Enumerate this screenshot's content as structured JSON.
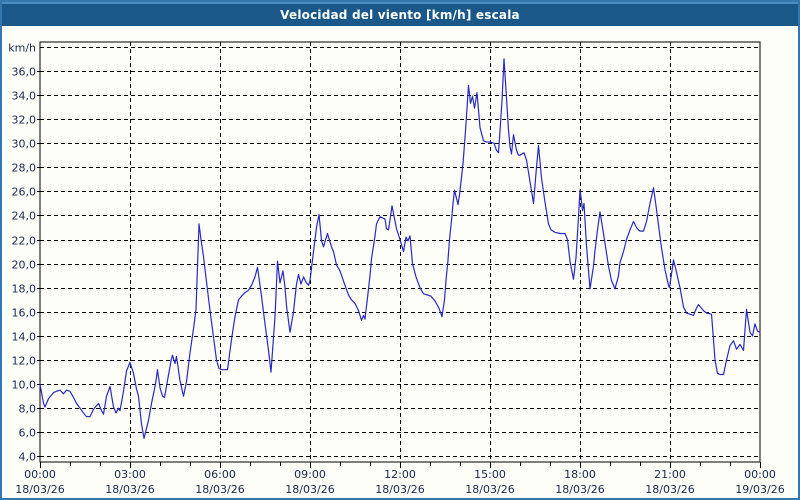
{
  "window": {
    "title": "Velocidad del viento [km/h] escala"
  },
  "colors": {
    "titlebar_bg": "#1a5889",
    "titlebar_highlight": "#4d8fc0",
    "window_border": "#3576ac",
    "content_bg": "#fcfef7",
    "plot_border": "#000000",
    "grid": "#000000",
    "line": "#2a2ac0",
    "label_text": "#1c2a50",
    "title_text": "#ffffff"
  },
  "chart_data": {
    "type": "line",
    "title": "Velocidad del viento [km/h] escala",
    "ylabel": "km/h",
    "xlabel": "",
    "grid": true,
    "legend": "none",
    "y_axis": {
      "min": 4,
      "max": 38,
      "grid_step": 2,
      "tick_labels": [
        "4,0",
        "6,0",
        "8,0",
        "10,0",
        "12,0",
        "14,0",
        "16,0",
        "18,0",
        "20,0",
        "22,0",
        "24,0",
        "26,0",
        "28,0",
        "30,0",
        "32,0",
        "34,0",
        "36,0"
      ],
      "unit_label": "km/h"
    },
    "x_axis": {
      "start_minutes": 0,
      "end_minutes": 1440,
      "major_tick_minutes": 180,
      "minor_tick_minutes": 60,
      "ticks": [
        {
          "time": "00:00",
          "date": "18/03/26"
        },
        {
          "time": "03:00",
          "date": "18/03/26"
        },
        {
          "time": "06:00",
          "date": "18/03/26"
        },
        {
          "time": "09:00",
          "date": "18/03/26"
        },
        {
          "time": "12:00",
          "date": "18/03/26"
        },
        {
          "time": "15:00",
          "date": "18/03/26"
        },
        {
          "time": "18:00",
          "date": "18/03/26"
        },
        {
          "time": "21:00",
          "date": "18/03/26"
        },
        {
          "time": "00:00",
          "date": "19/03/26"
        }
      ]
    },
    "series": [
      {
        "name": "Velocidad del viento",
        "unit": "km/h",
        "points": [
          [
            0,
            10.0
          ],
          [
            7,
            8.4
          ],
          [
            10,
            8.1
          ],
          [
            17,
            8.8
          ],
          [
            27,
            9.3
          ],
          [
            33,
            9.4
          ],
          [
            40,
            9.5
          ],
          [
            47,
            9.2
          ],
          [
            53,
            9.5
          ],
          [
            60,
            9.4
          ],
          [
            67,
            8.9
          ],
          [
            73,
            8.4
          ],
          [
            80,
            8.0
          ],
          [
            87,
            7.6
          ],
          [
            93,
            7.3
          ],
          [
            100,
            7.3
          ],
          [
            107,
            7.9
          ],
          [
            113,
            8.2
          ],
          [
            117,
            8.4
          ],
          [
            123,
            7.8
          ],
          [
            127,
            7.5
          ],
          [
            133,
            9.0
          ],
          [
            140,
            9.8
          ],
          [
            147,
            8.1
          ],
          [
            152,
            7.6
          ],
          [
            157,
            8.0
          ],
          [
            160,
            7.8
          ],
          [
            167,
            9.4
          ],
          [
            173,
            11.1
          ],
          [
            180,
            11.8
          ],
          [
            187,
            10.9
          ],
          [
            193,
            9.6
          ],
          [
            197,
            9.0
          ],
          [
            203,
            6.7
          ],
          [
            208,
            5.5
          ],
          [
            217,
            7.0
          ],
          [
            223,
            8.4
          ],
          [
            227,
            9.2
          ],
          [
            231,
            10.0
          ],
          [
            235,
            11.2
          ],
          [
            240,
            9.7
          ],
          [
            245,
            9.0
          ],
          [
            249,
            8.9
          ],
          [
            255,
            10.3
          ],
          [
            262,
            11.9
          ],
          [
            265,
            12.4
          ],
          [
            270,
            11.7
          ],
          [
            273,
            12.3
          ],
          [
            280,
            10.3
          ],
          [
            287,
            9.0
          ],
          [
            293,
            10.2
          ],
          [
            300,
            12.6
          ],
          [
            307,
            14.6
          ],
          [
            312,
            16.2
          ],
          [
            318,
            23.3
          ],
          [
            322,
            22.0
          ],
          [
            327,
            20.6
          ],
          [
            333,
            18.5
          ],
          [
            340,
            16.1
          ],
          [
            347,
            13.9
          ],
          [
            353,
            12.0
          ],
          [
            358,
            11.3
          ],
          [
            365,
            11.2
          ],
          [
            375,
            11.2
          ],
          [
            383,
            13.7
          ],
          [
            390,
            15.6
          ],
          [
            397,
            17.0
          ],
          [
            403,
            17.3
          ],
          [
            410,
            17.6
          ],
          [
            417,
            17.8
          ],
          [
            423,
            18.2
          ],
          [
            430,
            18.9
          ],
          [
            435,
            19.7
          ],
          [
            443,
            17.3
          ],
          [
            450,
            15.0
          ],
          [
            457,
            12.8
          ],
          [
            462,
            11.0
          ],
          [
            470,
            15.6
          ],
          [
            475,
            20.2
          ],
          [
            480,
            18.4
          ],
          [
            486,
            19.4
          ],
          [
            490,
            18.0
          ],
          [
            493,
            16.5
          ],
          [
            500,
            14.3
          ],
          [
            507,
            16.0
          ],
          [
            513,
            18.3
          ],
          [
            517,
            19.1
          ],
          [
            522,
            18.3
          ],
          [
            527,
            18.9
          ],
          [
            533,
            18.4
          ],
          [
            537,
            18.2
          ],
          [
            540,
            18.6
          ],
          [
            547,
            21.0
          ],
          [
            553,
            23.0
          ],
          [
            558,
            24.1
          ],
          [
            563,
            21.9
          ],
          [
            567,
            21.4
          ],
          [
            572,
            22.1
          ],
          [
            575,
            22.5
          ],
          [
            583,
            21.4
          ],
          [
            587,
            21.0
          ],
          [
            593,
            19.9
          ],
          [
            600,
            19.4
          ],
          [
            610,
            18.2
          ],
          [
            617,
            17.4
          ],
          [
            623,
            17.0
          ],
          [
            630,
            16.7
          ],
          [
            637,
            16.1
          ],
          [
            643,
            15.3
          ],
          [
            647,
            15.7
          ],
          [
            650,
            15.4
          ],
          [
            657,
            17.9
          ],
          [
            660,
            19.0
          ],
          [
            663,
            20.4
          ],
          [
            670,
            22.3
          ],
          [
            673,
            23.3
          ],
          [
            680,
            23.9
          ],
          [
            690,
            23.7
          ],
          [
            693,
            22.9
          ],
          [
            697,
            22.8
          ],
          [
            704,
            24.8
          ],
          [
            713,
            22.9
          ],
          [
            720,
            22.0
          ],
          [
            727,
            21.0
          ],
          [
            732,
            22.2
          ],
          [
            736,
            21.9
          ],
          [
            740,
            22.3
          ],
          [
            745,
            20.0
          ],
          [
            752,
            18.9
          ],
          [
            760,
            18.0
          ],
          [
            767,
            17.5
          ],
          [
            775,
            17.4
          ],
          [
            782,
            17.3
          ],
          [
            790,
            16.9
          ],
          [
            798,
            16.3
          ],
          [
            804,
            15.6
          ],
          [
            809,
            17.0
          ],
          [
            812,
            18.6
          ],
          [
            816,
            20.3
          ],
          [
            819,
            22.0
          ],
          [
            823,
            23.6
          ],
          [
            826,
            25.0
          ],
          [
            829,
            26.1
          ],
          [
            836,
            24.9
          ],
          [
            839,
            25.7
          ],
          [
            846,
            28.3
          ],
          [
            851,
            31.0
          ],
          [
            857,
            34.8
          ],
          [
            861,
            33.3
          ],
          [
            865,
            33.9
          ],
          [
            869,
            32.9
          ],
          [
            874,
            34.2
          ],
          [
            880,
            31.3
          ],
          [
            887,
            30.2
          ],
          [
            893,
            30.1
          ],
          [
            900,
            30.1
          ],
          [
            908,
            30.0
          ],
          [
            913,
            29.4
          ],
          [
            917,
            29.2
          ],
          [
            920,
            31.0
          ],
          [
            924,
            33.5
          ],
          [
            928,
            37.0
          ],
          [
            932,
            34.4
          ],
          [
            937,
            31.1
          ],
          [
            940,
            29.7
          ],
          [
            943,
            29.1
          ],
          [
            947,
            30.7
          ],
          [
            953,
            29.4
          ],
          [
            957,
            29.0
          ],
          [
            960,
            29.0
          ],
          [
            968,
            29.2
          ],
          [
            973,
            28.6
          ],
          [
            980,
            26.8
          ],
          [
            987,
            25.0
          ],
          [
            993,
            28.0
          ],
          [
            997,
            29.8
          ],
          [
            1003,
            27.1
          ],
          [
            1010,
            25.1
          ],
          [
            1017,
            23.3
          ],
          [
            1022,
            22.8
          ],
          [
            1030,
            22.6
          ],
          [
            1040,
            22.5
          ],
          [
            1050,
            22.5
          ],
          [
            1055,
            22.0
          ],
          [
            1060,
            20.2
          ],
          [
            1067,
            18.7
          ],
          [
            1072,
            20.5
          ],
          [
            1077,
            23.9
          ],
          [
            1080,
            26.1
          ],
          [
            1083,
            25.2
          ],
          [
            1085,
            24.4
          ],
          [
            1088,
            25.0
          ],
          [
            1093,
            21.5
          ],
          [
            1100,
            17.9
          ],
          [
            1107,
            19.8
          ],
          [
            1110,
            21.1
          ],
          [
            1115,
            22.8
          ],
          [
            1120,
            24.3
          ],
          [
            1127,
            22.5
          ],
          [
            1130,
            21.7
          ],
          [
            1137,
            19.8
          ],
          [
            1143,
            18.6
          ],
          [
            1150,
            17.9
          ],
          [
            1157,
            19.0
          ],
          [
            1160,
            20.1
          ],
          [
            1167,
            21.0
          ],
          [
            1173,
            22.0
          ],
          [
            1180,
            22.8
          ],
          [
            1187,
            23.5
          ],
          [
            1193,
            23.0
          ],
          [
            1197,
            22.8
          ],
          [
            1200,
            22.7
          ],
          [
            1207,
            22.7
          ],
          [
            1213,
            23.5
          ],
          [
            1220,
            25.0
          ],
          [
            1227,
            26.3
          ],
          [
            1233,
            24.5
          ],
          [
            1237,
            23.2
          ],
          [
            1243,
            21.3
          ],
          [
            1250,
            19.5
          ],
          [
            1257,
            18.2
          ],
          [
            1259,
            18.0
          ],
          [
            1267,
            20.3
          ],
          [
            1273,
            19.3
          ],
          [
            1280,
            18.0
          ],
          [
            1287,
            16.4
          ],
          [
            1293,
            15.9
          ],
          [
            1300,
            15.8
          ],
          [
            1307,
            15.7
          ],
          [
            1313,
            16.3
          ],
          [
            1317,
            16.6
          ],
          [
            1327,
            16.1
          ],
          [
            1333,
            15.9
          ],
          [
            1343,
            15.8
          ],
          [
            1347,
            13.7
          ],
          [
            1350,
            12.0
          ],
          [
            1355,
            10.9
          ],
          [
            1360,
            10.8
          ],
          [
            1367,
            10.8
          ],
          [
            1373,
            12.0
          ],
          [
            1380,
            13.2
          ],
          [
            1387,
            13.6
          ],
          [
            1393,
            12.9
          ],
          [
            1400,
            13.3
          ],
          [
            1407,
            12.8
          ],
          [
            1413,
            16.2
          ],
          [
            1420,
            14.3
          ],
          [
            1425,
            14.0
          ],
          [
            1430,
            15.0
          ],
          [
            1435,
            14.4
          ],
          [
            1440,
            14.3
          ]
        ]
      }
    ]
  }
}
